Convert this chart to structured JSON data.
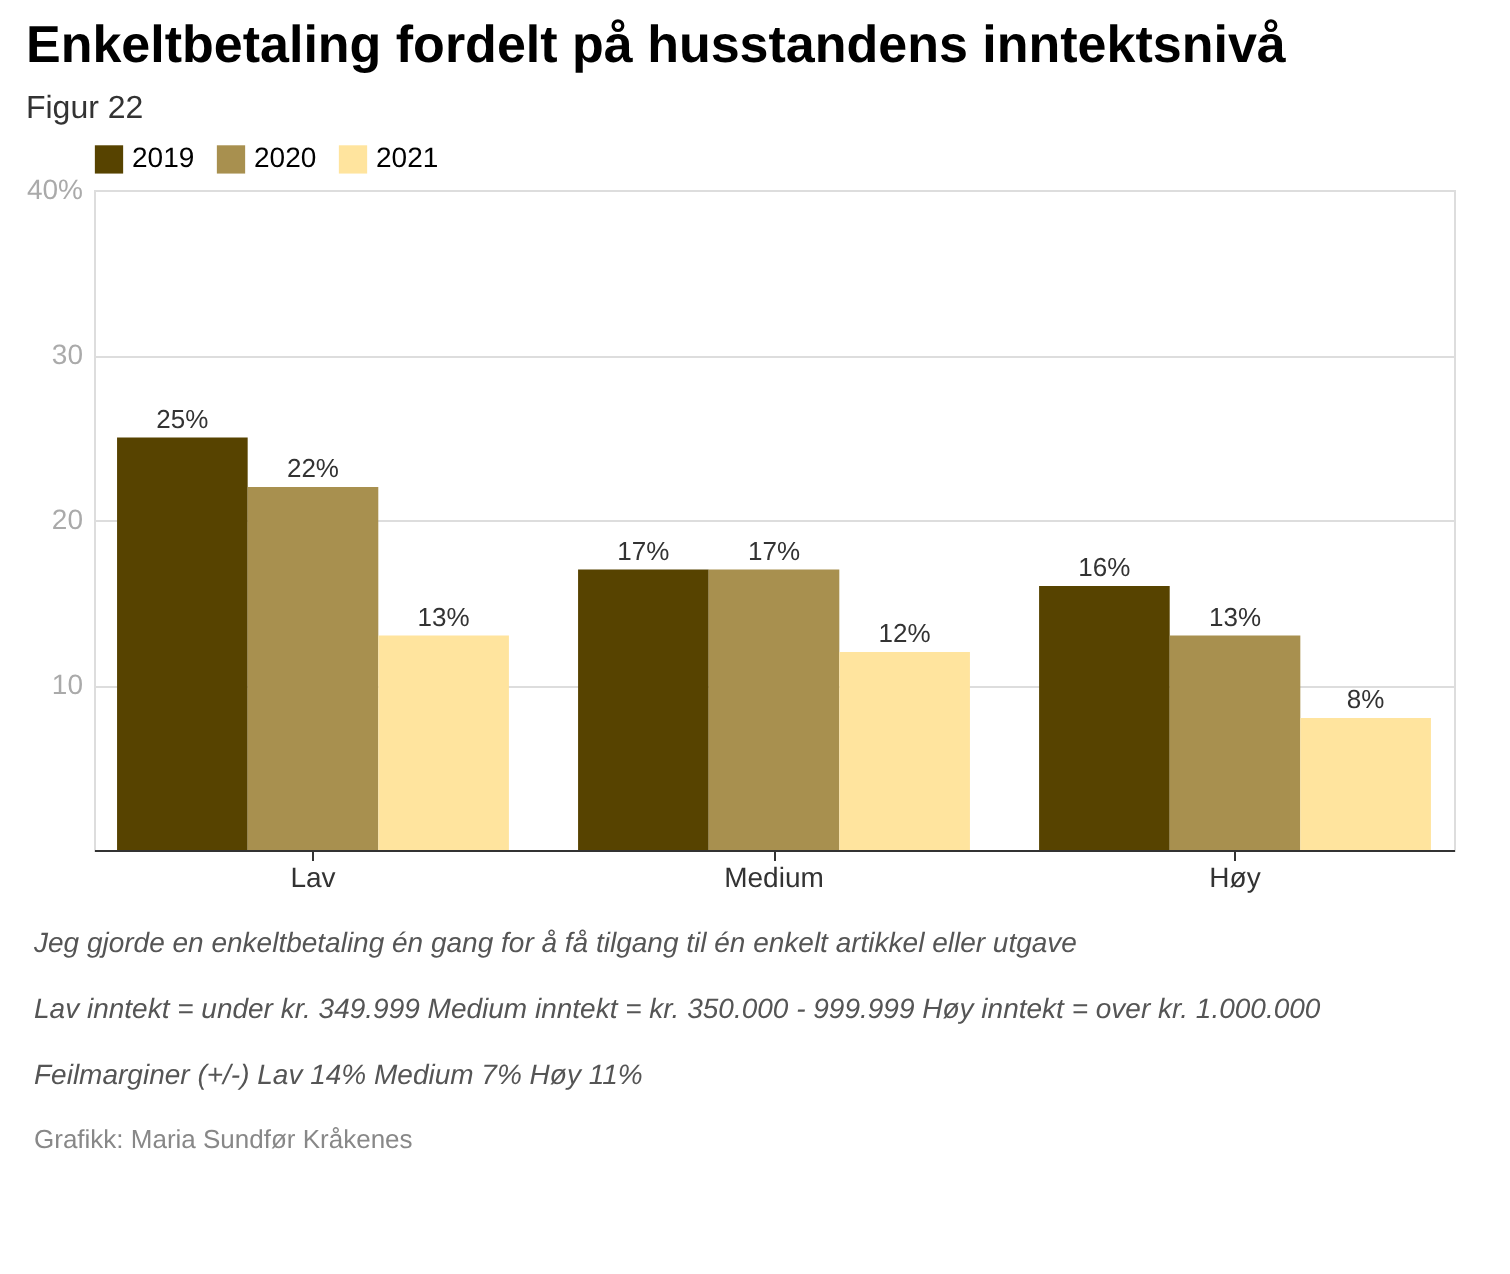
{
  "chart_data": {
    "type": "bar",
    "title": "Enkeltbetaling fordelt på husstandens inntektsnivå",
    "subtitle": "Figur 22",
    "categories": [
      "Lav",
      "Medium",
      "Høy"
    ],
    "series": [
      {
        "name": "2019",
        "color": "#574300",
        "values": [
          25,
          17,
          16
        ],
        "value_labels": [
          "25%",
          "17%",
          "16%"
        ]
      },
      {
        "name": "2020",
        "color": "#a8904f",
        "values": [
          22,
          17,
          13
        ],
        "value_labels": [
          "22%",
          "17%",
          "13%"
        ]
      },
      {
        "name": "2021",
        "color": "#ffe49e",
        "values": [
          13,
          12,
          8
        ],
        "value_labels": [
          "13%",
          "12%",
          "8%"
        ]
      }
    ],
    "ylim": [
      0,
      40
    ],
    "yticks": [
      {
        "value": 0,
        "label": null
      },
      10,
      20,
      30,
      {
        "value": 40,
        "label": "40%"
      }
    ],
    "grid": "y",
    "legend": "top left",
    "annotations": [
      "Jeg gjorde en enkeltbetaling én gang for å få tilgang til én enkelt artikkel eller utgave",
      "Lav inntekt = under kr. 349.999 Medium inntekt = kr. 350.000 - 999.999 Høy inntekt = over kr. 1.000.000",
      "Feilmarginer (+/-) Lav 14% Medium 7% Høy 11%",
      "Grafikk: Maria Sundfør Kråkenes"
    ]
  }
}
